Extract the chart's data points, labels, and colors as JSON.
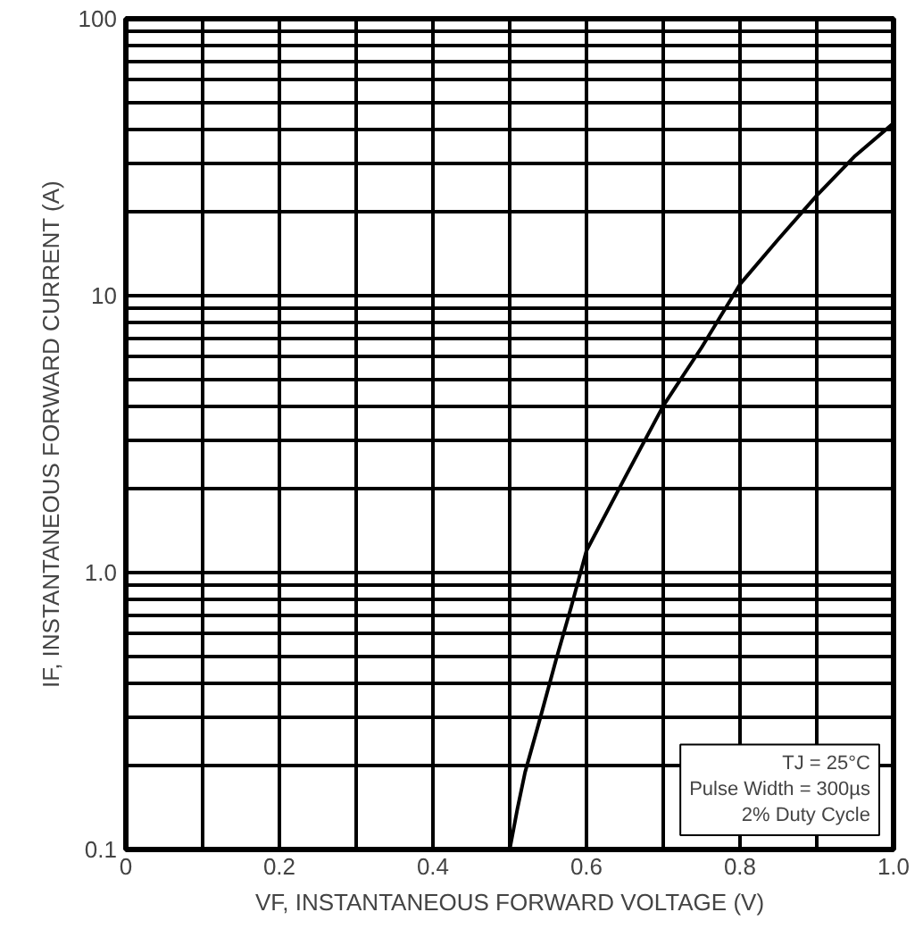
{
  "chart_data": {
    "type": "line",
    "xlabel": "VF, INSTANTANEOUS FORWARD VOLTAGE (V)",
    "ylabel": "IF, INSTANTANEOUS FORWARD CURRENT (A)",
    "x": [
      0.5,
      0.51,
      0.52,
      0.54,
      0.56,
      0.58,
      0.6,
      0.65,
      0.7,
      0.75,
      0.8,
      0.85,
      0.9,
      0.95,
      1.0
    ],
    "series": [
      {
        "color": "#000000",
        "values": [
          0.1,
          0.14,
          0.19,
          0.3,
          0.48,
          0.75,
          1.2,
          2.2,
          4,
          6.5,
          11,
          16,
          23,
          32,
          42
        ]
      }
    ],
    "log": "y",
    "xlim": [
      0,
      1.0
    ],
    "ylim": [
      0.1,
      100
    ],
    "xticks": [
      0,
      {
        "value": 0.1,
        "label": null
      },
      0.2,
      {
        "value": 0.3,
        "label": null
      },
      0.4,
      {
        "value": 0.5,
        "label": null
      },
      0.6,
      {
        "value": 0.7,
        "label": null
      },
      0.8,
      {
        "value": 0.9,
        "label": null
      },
      {
        "value": 1.0,
        "label": "1.0"
      }
    ],
    "yticks": [
      0.1,
      {
        "value": 0.2,
        "label": null
      },
      {
        "value": 0.3,
        "label": null
      },
      {
        "value": 0.4,
        "label": null
      },
      {
        "value": 0.5,
        "label": null
      },
      {
        "value": 0.6,
        "label": null
      },
      {
        "value": 0.7,
        "label": null
      },
      {
        "value": 0.8,
        "label": null
      },
      {
        "value": 0.9,
        "label": null
      },
      {
        "value": 1,
        "label": "1.0"
      },
      {
        "value": 2,
        "label": null
      },
      {
        "value": 3,
        "label": null
      },
      {
        "value": 4,
        "label": null
      },
      {
        "value": 5,
        "label": null
      },
      {
        "value": 6,
        "label": null
      },
      {
        "value": 7,
        "label": null
      },
      {
        "value": 8,
        "label": null
      },
      {
        "value": 9,
        "label": null
      },
      10,
      {
        "value": 20,
        "label": null
      },
      {
        "value": 30,
        "label": null
      },
      {
        "value": 40,
        "label": null
      },
      {
        "value": 50,
        "label": null
      },
      {
        "value": 60,
        "label": null
      },
      {
        "value": 70,
        "label": null
      },
      {
        "value": 80,
        "label": null
      },
      {
        "value": 90,
        "label": null
      },
      100
    ],
    "grid": true,
    "line_style": "solid",
    "marker": "none",
    "annotations": [
      "TJ = 25°C",
      "Pulse Width = 300µs",
      "2% Duty Cycle"
    ]
  }
}
